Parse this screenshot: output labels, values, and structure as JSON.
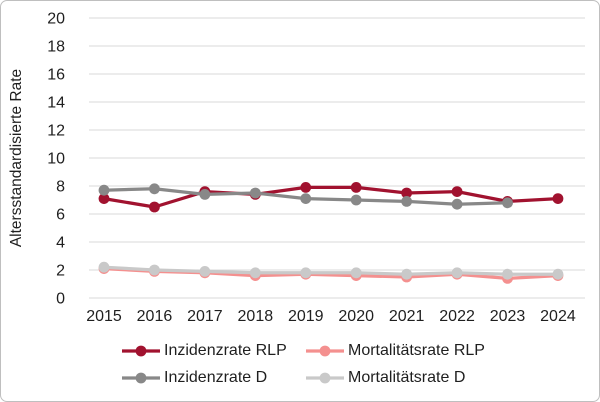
{
  "chart_data": {
    "type": "line",
    "title": "",
    "xlabel": "",
    "ylabel": "Altersstandardisierte Rate",
    "categories": [
      "2015",
      "2016",
      "2017",
      "2018",
      "2019",
      "2020",
      "2021",
      "2022",
      "2023",
      "2024"
    ],
    "ylim": [
      0,
      20
    ],
    "ytick_step": 2,
    "grid": "horizontal-only",
    "legend_position": "bottom",
    "series": [
      {
        "name": "Inzidenzrate RLP",
        "color": "#A1122F",
        "values": [
          7.1,
          6.5,
          7.6,
          7.4,
          7.9,
          7.9,
          7.5,
          7.6,
          6.9,
          7.1
        ]
      },
      {
        "name": "Mortalitätsrate RLP",
        "color": "#F4908F",
        "values": [
          2.1,
          1.9,
          1.8,
          1.6,
          1.7,
          1.6,
          1.5,
          1.7,
          1.4,
          1.6
        ]
      },
      {
        "name": "Inzidenzrate D",
        "color": "#888888",
        "values": [
          7.7,
          7.8,
          7.4,
          7.5,
          7.1,
          7.0,
          6.9,
          6.7,
          6.8,
          null
        ]
      },
      {
        "name": "Mortalitätsrate D",
        "color": "#C9C9C9",
        "values": [
          2.2,
          2.0,
          1.9,
          1.8,
          1.8,
          1.8,
          1.7,
          1.8,
          1.7,
          1.7
        ]
      }
    ]
  },
  "colors": {
    "gridline": "#D9D9D9",
    "text": "#1F1F1F",
    "frame_border": "#BFBFBF",
    "background": "#FFFFFF"
  }
}
